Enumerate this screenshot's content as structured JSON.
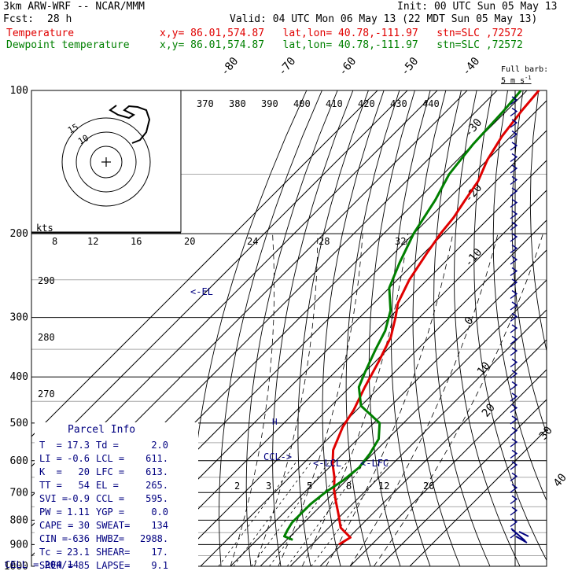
{
  "header": {
    "model": "3km ARW-WRF -- NCAR/MMM",
    "init": "Init: 00 UTC Sun 05 May 13",
    "fcst_label": "Fcst:",
    "fcst_value": "28 h",
    "valid": "Valid: 04 UTC Mon 06 May 13 (22 MDT Sun 05 May 13)",
    "temp_label": "Temperature",
    "dew_label": "Dewpoint temperature",
    "loc_info": "x,y= 86.01,574.87   lat,lon= 40.78,-111.97   stn=SLC ,72572"
  },
  "full_barb": {
    "line1": "Full barb:",
    "line2": "5 m s",
    "exp": "-1"
  },
  "parcel": {
    "title": "Parcel Info",
    "rows": [
      [
        "T  =",
        "17.3",
        "Td =",
        "2.0"
      ],
      [
        "LI =",
        "-0.6",
        "LCL =",
        "611."
      ],
      [
        "K  =",
        "20",
        "LFC =",
        "613."
      ],
      [
        "TT =",
        "54",
        "EL =",
        "265."
      ],
      [
        "SVI =",
        "-0.9",
        "CCL =",
        "595."
      ],
      [
        "PW =",
        "1.11",
        "YGP =",
        "0.0"
      ],
      [
        "CAPE =",
        "30",
        "SWEAT=",
        "134"
      ],
      [
        "CIN =",
        "-636",
        "HWBZ=",
        "2988."
      ],
      [
        "Tc =",
        "23.1",
        "SHEAR=",
        "17."
      ],
      [
        "SREH =",
        "85",
        "LAPSE=",
        "9.1"
      ]
    ],
    "cell": "CELL = 204/14"
  },
  "colors": {
    "temperature": "#e00000",
    "dewpoint": "#008000",
    "annot": "#000080"
  },
  "chart_data": {
    "type": "line",
    "pressure_labels": [
      "100",
      "200",
      "300",
      "400",
      "500",
      "600",
      "700",
      "800",
      "900",
      "1000"
    ],
    "isotherm_labels": [
      "-80",
      "-70",
      "-60",
      "-50",
      "-40",
      "-30",
      "-20",
      "-10",
      "0",
      "10",
      "20",
      "30",
      "40"
    ],
    "theta_labels": [
      "370",
      "380",
      "390",
      "400",
      "410",
      "420",
      "430",
      "440"
    ],
    "theta_side_labels": [
      "290",
      "280",
      "270"
    ],
    "mixing_ratio_labels": [
      "2",
      "3",
      "5",
      "8",
      "12",
      "20"
    ],
    "hodo_speed_labels": [
      "8",
      "12",
      "16",
      "20",
      "24",
      "28",
      "32"
    ],
    "hodo_unit": "kts",
    "hodo_ring_labels": [
      "15",
      "10"
    ],
    "marks": {
      "el": "<-EL",
      "ccl": "CCL->",
      "lcl": "<-LCL",
      "lfc": "<-LFC"
    },
    "series": [
      {
        "name": "Temperature",
        "points": [
          [
            900,
            19
          ],
          [
            870,
            20.5
          ],
          [
            830,
            14
          ],
          [
            780,
            9
          ],
          [
            730,
            3.5
          ],
          [
            690,
            -1
          ],
          [
            650,
            -5
          ],
          [
            610,
            -10
          ],
          [
            570,
            -14.5
          ],
          [
            510,
            -19
          ],
          [
            470,
            -21
          ],
          [
            420,
            -25
          ],
          [
            370,
            -29
          ],
          [
            330,
            -33
          ],
          [
            300,
            -38
          ],
          [
            280,
            -42
          ],
          [
            250,
            -46
          ],
          [
            220,
            -49
          ],
          [
            200,
            -51
          ],
          [
            185,
            -52
          ],
          [
            170,
            -54
          ],
          [
            155,
            -56
          ],
          [
            140,
            -60
          ],
          [
            125,
            -63
          ],
          [
            110,
            -65
          ],
          [
            100,
            -66
          ]
        ]
      },
      {
        "name": "Dewpoint temperature",
        "points": [
          [
            880,
            2
          ],
          [
            865,
            -2
          ],
          [
            840,
            -3
          ],
          [
            810,
            -4
          ],
          [
            780,
            -4
          ],
          [
            740,
            -4
          ],
          [
            700,
            -3
          ],
          [
            660,
            -1
          ],
          [
            620,
            0
          ],
          [
            580,
            -1
          ],
          [
            540,
            -3
          ],
          [
            500,
            -8
          ],
          [
            460,
            -20
          ],
          [
            420,
            -27
          ],
          [
            390,
            -30
          ],
          [
            350,
            -34
          ],
          [
            320,
            -37
          ],
          [
            290,
            -42
          ],
          [
            260,
            -50
          ],
          [
            230,
            -55
          ],
          [
            200,
            -60
          ],
          [
            170,
            -64
          ],
          [
            150,
            -68
          ],
          [
            130,
            -70
          ],
          [
            110,
            -71
          ],
          [
            100,
            -72
          ]
        ]
      }
    ],
    "wind_barbs_count": 40
  }
}
